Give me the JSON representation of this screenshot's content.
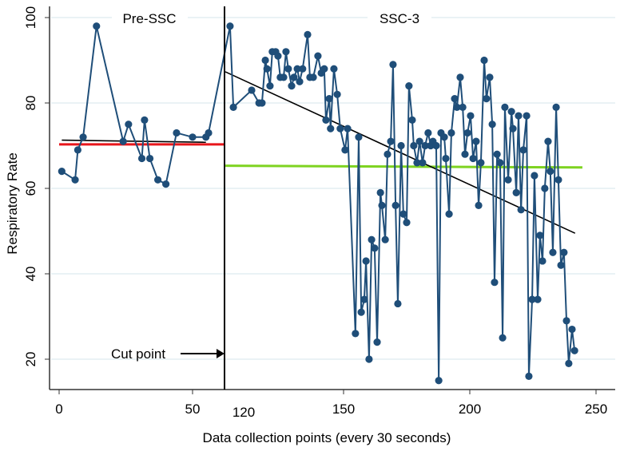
{
  "chart_data": {
    "type": "line",
    "title": "",
    "xlabel": "Data collection points (every 30 seconds)",
    "ylabel": "Respiratory Rate",
    "ylim": [
      15,
      100
    ],
    "yticks": [
      "20",
      "40",
      "60",
      "80",
      "100"
    ],
    "grid": true,
    "xticks_pre": [
      "0",
      "50"
    ],
    "xticks_post": [
      "120",
      "150",
      "200",
      "250"
    ],
    "annotations": {
      "pre_label": "Pre-SSC",
      "post_label": "SSC-3",
      "cut_label": "Cut point"
    },
    "phases": [
      {
        "name": "Pre-SSC",
        "x": [
          1,
          6,
          7,
          9,
          14,
          24,
          26,
          31,
          32,
          34,
          37,
          40,
          44,
          50,
          55,
          56
        ],
        "y": [
          64,
          62,
          69,
          72,
          98,
          71,
          75,
          67,
          76,
          67,
          62,
          61,
          73,
          72,
          72,
          73
        ],
        "mean_line": {
          "color": "#e8161b",
          "x": [
            0,
            62
          ],
          "y": [
            70.3,
            70.3
          ]
        },
        "trend_line": {
          "color": "#000000",
          "x": [
            1,
            55
          ],
          "y": [
            71.3,
            70.8
          ]
        }
      },
      {
        "name": "SSC-3",
        "x": [
          115.9,
          116.9,
          122.4,
          124.6,
          125.5,
          126.5,
          127.0,
          127.9,
          128.6,
          129.6,
          130.3,
          131.0,
          132.0,
          132.7,
          133.4,
          134.4,
          135.1,
          136.1,
          136.8,
          137.7,
          139.2,
          139.9,
          140.9,
          142.3,
          143.3,
          144.2,
          144.7,
          145.7,
          146.1,
          147.1,
          148.1,
          149.0,
          150.6,
          151.6,
          154.7,
          156.0,
          157.0,
          158.2,
          158.9,
          160.1,
          161.1,
          162.3,
          163.3,
          164.6,
          165.2,
          166.5,
          167.4,
          168.7,
          169.6,
          170.6,
          171.5,
          172.8,
          173.7,
          175.0,
          175.9,
          177.2,
          177.8,
          179.1,
          180.1,
          181.3,
          182.3,
          183.5,
          184.5,
          185.4,
          186.7,
          187.7,
          188.6,
          189.9,
          190.5,
          191.8,
          192.7,
          194.0,
          194.9,
          196.2,
          197.2,
          198.1,
          199.1,
          200.3,
          201.3,
          202.5,
          203.5,
          204.4,
          205.7,
          206.6,
          207.9,
          208.9,
          209.8,
          210.8,
          212.0,
          213.0,
          213.9,
          215.2,
          216.5,
          217.1,
          218.4,
          219.3,
          220.3,
          221.2,
          222.5,
          223.4,
          224.7,
          225.6,
          226.9,
          227.8,
          228.8,
          229.7,
          231.0,
          231.9,
          232.9,
          234.2,
          235.1,
          236.1,
          237.3,
          238.3,
          239.2,
          240.5,
          241.5
        ],
        "y": [
          98,
          79,
          83,
          80,
          80,
          90,
          88,
          84,
          92,
          92,
          91,
          86,
          86,
          92,
          88,
          84,
          86,
          88,
          85,
          88,
          96,
          86,
          86,
          91,
          87,
          88,
          76,
          81,
          74,
          88,
          82,
          74,
          69,
          74,
          26,
          72,
          31,
          34,
          43,
          20,
          48,
          46,
          24,
          59,
          56,
          48,
          68,
          71,
          89,
          56,
          33,
          70,
          54,
          52,
          84,
          76,
          70,
          66,
          71,
          66,
          70,
          73,
          70,
          71,
          70,
          15,
          73,
          72,
          67,
          54,
          73,
          81,
          79,
          86,
          79,
          68,
          73,
          77,
          67,
          71,
          56,
          66,
          90,
          81,
          86,
          75,
          38,
          68,
          66,
          25,
          79,
          62,
          78,
          74,
          59,
          77,
          55,
          69,
          77,
          16,
          34,
          63,
          34,
          49,
          43,
          60,
          71,
          64,
          45,
          79,
          62,
          42,
          45,
          29,
          19,
          27,
          22
        ],
        "mean_line": {
          "color": "#7ed321",
          "x": [
            114.5,
            244.6
          ],
          "y": [
            65.3,
            64.9
          ]
        },
        "trend_line": {
          "color": "#000000",
          "x": [
            114.5,
            241.7
          ],
          "y": [
            87.3,
            49.5
          ]
        }
      }
    ],
    "series_color": "#1f4e79",
    "cut_point": {
      "x_pre": 62,
      "x_post": 114.5
    }
  }
}
